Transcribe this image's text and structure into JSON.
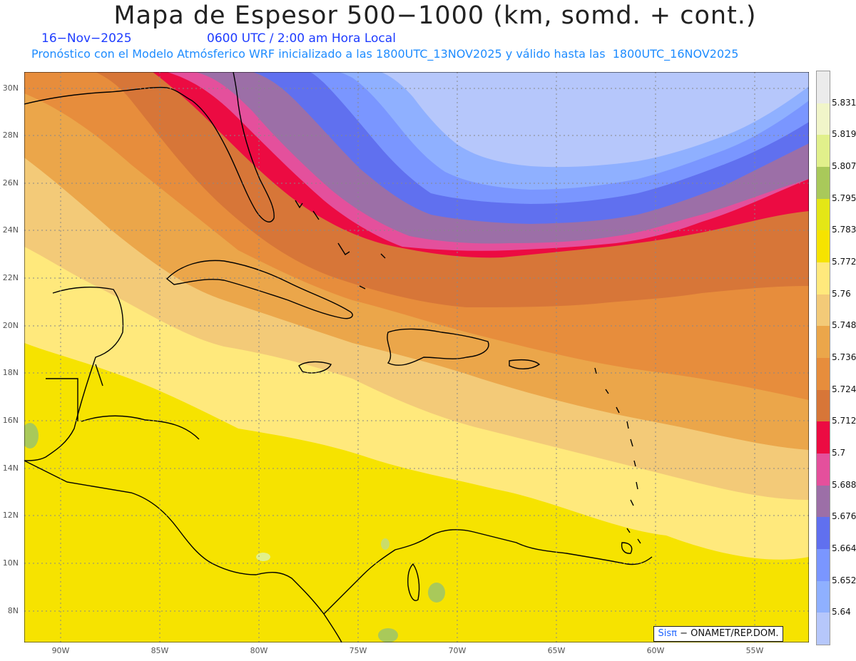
{
  "title": "Mapa de Espesor 500−1000 (km, somd. + cont.)",
  "date": "16−Nov−2025",
  "time": "0600 UTC / 2:00 am Hora Local",
  "subtitle": "Pronóstico con el Modelo Atmósferico WRF inicializado a las 1800UTC_13NOV2025 y válido hasta las  1800UTC_16NOV2025",
  "credit": {
    "brand": "Sisπ",
    "text": " − ONAMET/REP.DOM."
  },
  "lon_labels": [
    "90W",
    "85W",
    "80W",
    "75W",
    "70W",
    "65W",
    "60W",
    "55W"
  ],
  "lat_labels": [
    "30N",
    "28N",
    "26N",
    "24N",
    "22N",
    "20N",
    "18N",
    "16N",
    "14N",
    "12N",
    "10N",
    "8N"
  ],
  "colorbar": {
    "labels": [
      "5.831",
      "5.819",
      "5.807",
      "5.795",
      "5.783",
      "5.772",
      "5.76",
      "5.748",
      "5.736",
      "5.724",
      "5.712",
      "5.7",
      "5.688",
      "5.676",
      "5.664",
      "5.652",
      "5.64"
    ],
    "colors": [
      "#ebebeb",
      "#f1f5c9",
      "#e1f08b",
      "#a9c95a",
      "#e4e616",
      "#f6e300",
      "#ffe97c",
      "#f3ca78",
      "#eba64a",
      "#e78d3c",
      "#d77638",
      "#ec0b42",
      "#e4509c",
      "#9c6fa7",
      "#6070ef",
      "#7a96ff",
      "#8fb0ff",
      "#b6c7fb"
    ]
  },
  "map_colors": {
    "bluest": "#b6c7fb",
    "light_blue": "#8fb0ff",
    "blue": "#7a96ff",
    "deep_blue": "#6070ef",
    "purple": "#9c6fa7",
    "pink": "#e4509c",
    "red": "#ec0b42",
    "dark_orange": "#d77638",
    "orange": "#e78d3c",
    "light_orange": "#eba64a",
    "tan": "#f3ca78",
    "pale_yellow": "#ffe97c",
    "yellow": "#f6e300"
  }
}
